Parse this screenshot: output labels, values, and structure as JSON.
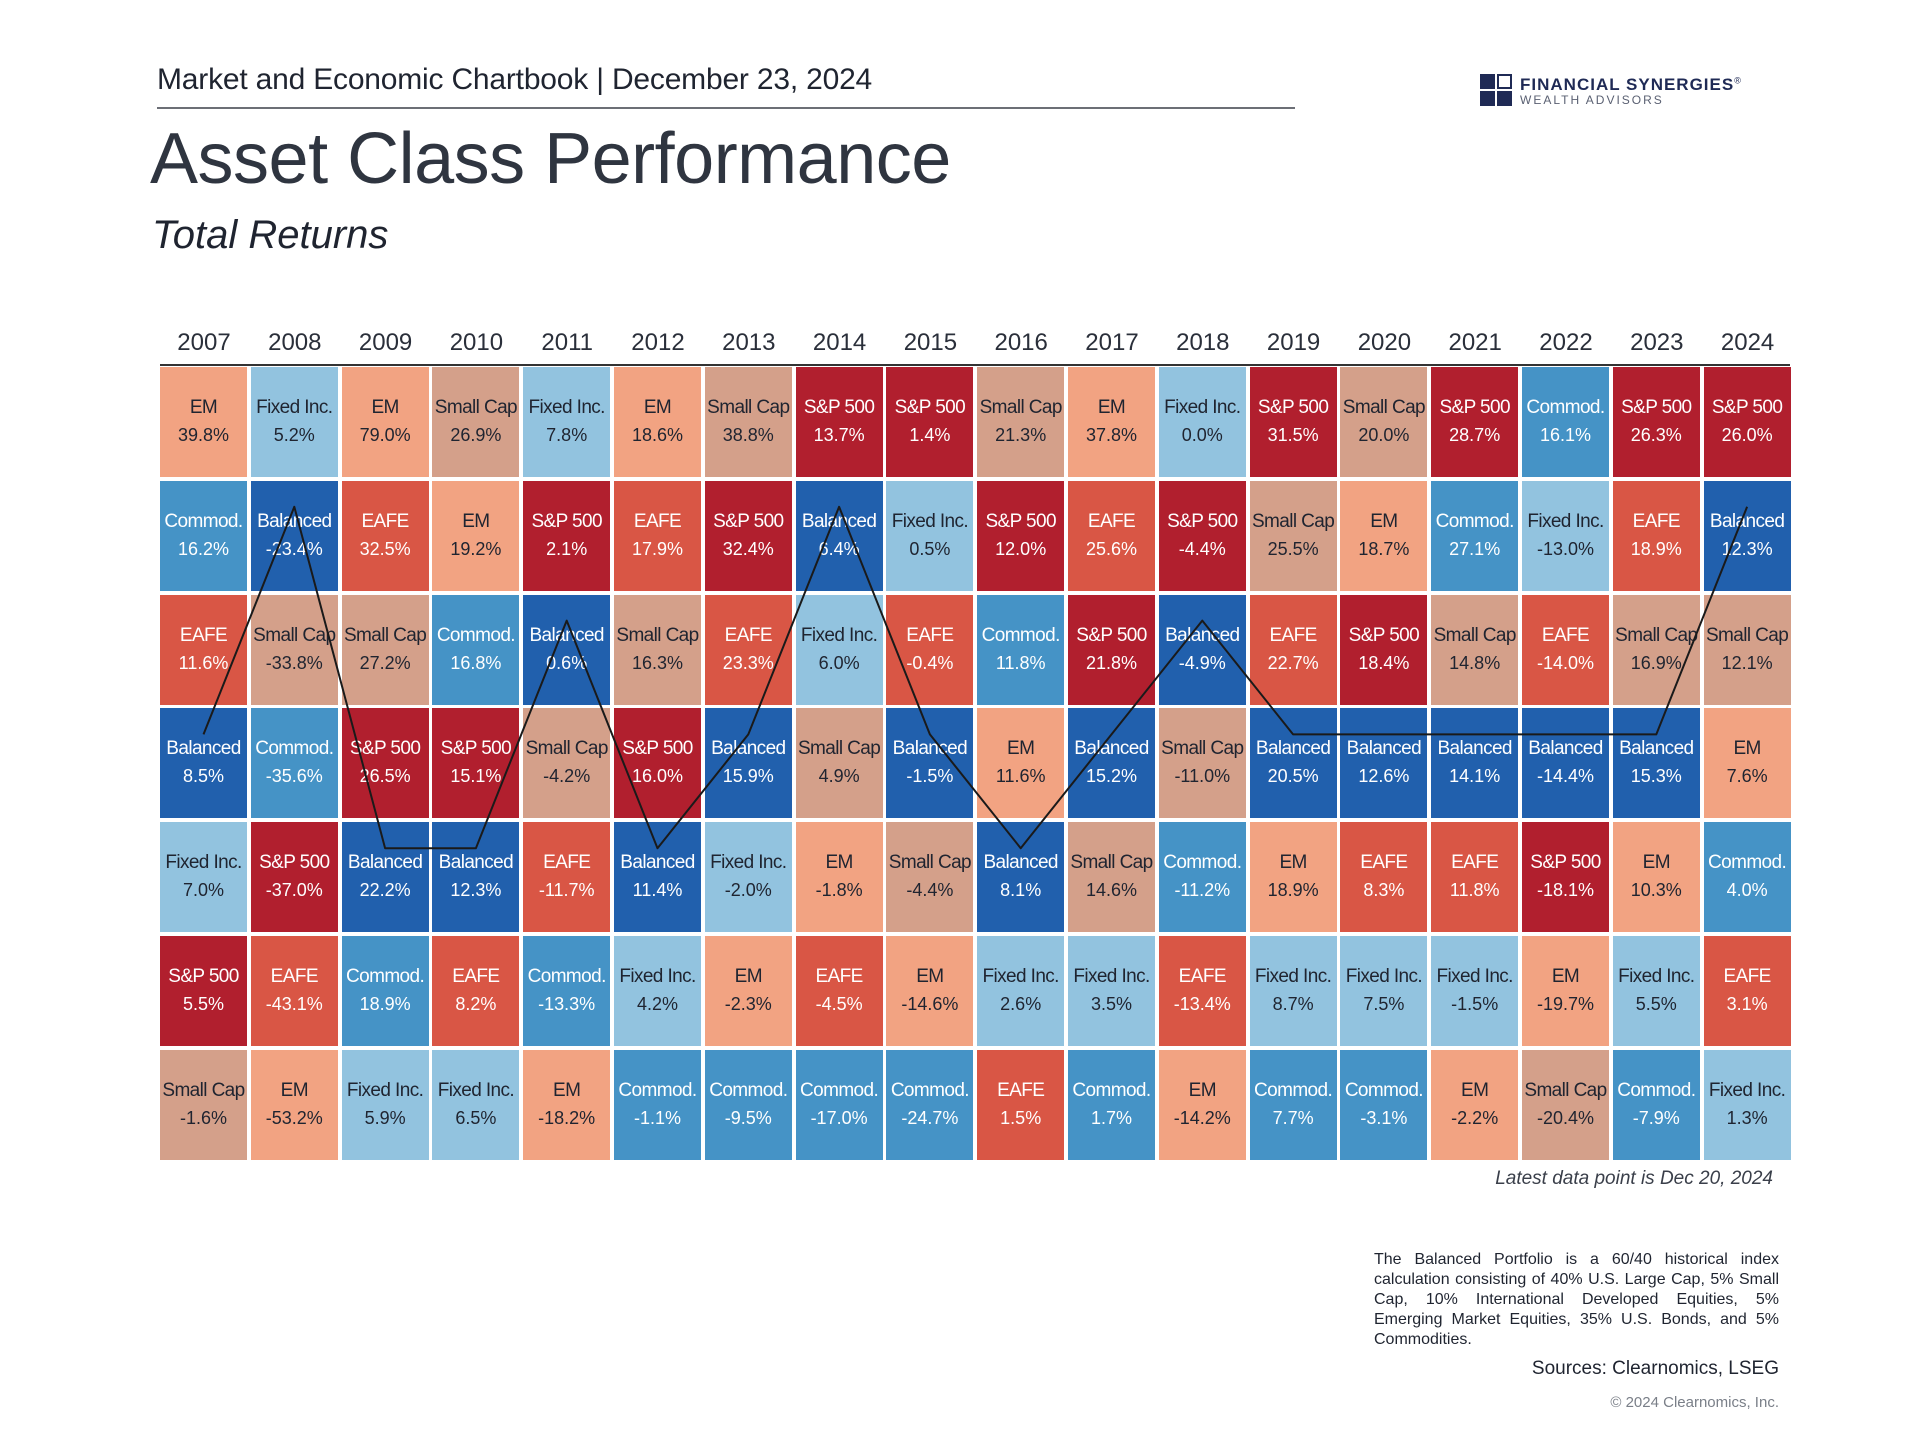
{
  "header": {
    "chartbook_line": "Market and Economic Chartbook | December 23, 2024",
    "logo_name": "FINANCIAL SYNERGIES",
    "logo_registered": "®",
    "logo_sub": "WEALTH ADVISORS"
  },
  "title": "Asset Class Performance",
  "subtitle": "Total Returns",
  "colors": {
    "S&P 500": "#b11f2e",
    "EAFE": "#d95645",
    "EM": "#f2a382",
    "Small Cap": "#d4a08a",
    "Fixed Inc.": "#92c3df",
    "Commod.": "#4593c6",
    "Balanced": "#2160ad",
    "balanced_line": "#1a1a1a",
    "logo": "#1f2a55"
  },
  "chart_data": {
    "type": "table",
    "title": "Asset Class Performance",
    "subtitle": "Total Returns",
    "years": [
      "2007",
      "2008",
      "2009",
      "2010",
      "2011",
      "2012",
      "2013",
      "2014",
      "2015",
      "2016",
      "2017",
      "2018",
      "2019",
      "2020",
      "2021",
      "2022",
      "2023",
      "2024"
    ],
    "columns": [
      [
        {
          "label": "EM",
          "value": "39.8%"
        },
        {
          "label": "Commod.",
          "value": "16.2%"
        },
        {
          "label": "EAFE",
          "value": "11.6%"
        },
        {
          "label": "Balanced",
          "value": "8.5%"
        },
        {
          "label": "Fixed Inc.",
          "value": "7.0%"
        },
        {
          "label": "S&P 500",
          "value": "5.5%"
        },
        {
          "label": "Small Cap",
          "value": "-1.6%"
        }
      ],
      [
        {
          "label": "Fixed Inc.",
          "value": "5.2%"
        },
        {
          "label": "Balanced",
          "value": "-23.4%"
        },
        {
          "label": "Small Cap",
          "value": "-33.8%"
        },
        {
          "label": "Commod.",
          "value": "-35.6%"
        },
        {
          "label": "S&P 500",
          "value": "-37.0%"
        },
        {
          "label": "EAFE",
          "value": "-43.1%"
        },
        {
          "label": "EM",
          "value": "-53.2%"
        }
      ],
      [
        {
          "label": "EM",
          "value": "79.0%"
        },
        {
          "label": "EAFE",
          "value": "32.5%"
        },
        {
          "label": "Small Cap",
          "value": "27.2%"
        },
        {
          "label": "S&P 500",
          "value": "26.5%"
        },
        {
          "label": "Balanced",
          "value": "22.2%"
        },
        {
          "label": "Commod.",
          "value": "18.9%"
        },
        {
          "label": "Fixed Inc.",
          "value": "5.9%"
        }
      ],
      [
        {
          "label": "Small Cap",
          "value": "26.9%"
        },
        {
          "label": "EM",
          "value": "19.2%"
        },
        {
          "label": "Commod.",
          "value": "16.8%"
        },
        {
          "label": "S&P 500",
          "value": "15.1%"
        },
        {
          "label": "Balanced",
          "value": "12.3%"
        },
        {
          "label": "EAFE",
          "value": "8.2%"
        },
        {
          "label": "Fixed Inc.",
          "value": "6.5%"
        }
      ],
      [
        {
          "label": "Fixed Inc.",
          "value": "7.8%"
        },
        {
          "label": "S&P 500",
          "value": "2.1%"
        },
        {
          "label": "Balanced",
          "value": "0.6%"
        },
        {
          "label": "Small Cap",
          "value": "-4.2%"
        },
        {
          "label": "EAFE",
          "value": "-11.7%"
        },
        {
          "label": "Commod.",
          "value": "-13.3%"
        },
        {
          "label": "EM",
          "value": "-18.2%"
        }
      ],
      [
        {
          "label": "EM",
          "value": "18.6%"
        },
        {
          "label": "EAFE",
          "value": "17.9%"
        },
        {
          "label": "Small Cap",
          "value": "16.3%"
        },
        {
          "label": "S&P 500",
          "value": "16.0%"
        },
        {
          "label": "Balanced",
          "value": "11.4%"
        },
        {
          "label": "Fixed Inc.",
          "value": "4.2%"
        },
        {
          "label": "Commod.",
          "value": "-1.1%"
        }
      ],
      [
        {
          "label": "Small Cap",
          "value": "38.8%"
        },
        {
          "label": "S&P 500",
          "value": "32.4%"
        },
        {
          "label": "EAFE",
          "value": "23.3%"
        },
        {
          "label": "Balanced",
          "value": "15.9%"
        },
        {
          "label": "Fixed Inc.",
          "value": "-2.0%"
        },
        {
          "label": "EM",
          "value": "-2.3%"
        },
        {
          "label": "Commod.",
          "value": "-9.5%"
        }
      ],
      [
        {
          "label": "S&P 500",
          "value": "13.7%"
        },
        {
          "label": "Balanced",
          "value": "6.4%"
        },
        {
          "label": "Fixed Inc.",
          "value": "6.0%"
        },
        {
          "label": "Small Cap",
          "value": "4.9%"
        },
        {
          "label": "EM",
          "value": "-1.8%"
        },
        {
          "label": "EAFE",
          "value": "-4.5%"
        },
        {
          "label": "Commod.",
          "value": "-17.0%"
        }
      ],
      [
        {
          "label": "S&P 500",
          "value": "1.4%"
        },
        {
          "label": "Fixed Inc.",
          "value": "0.5%"
        },
        {
          "label": "EAFE",
          "value": "-0.4%"
        },
        {
          "label": "Balanced",
          "value": "-1.5%"
        },
        {
          "label": "Small Cap",
          "value": "-4.4%"
        },
        {
          "label": "EM",
          "value": "-14.6%"
        },
        {
          "label": "Commod.",
          "value": "-24.7%"
        }
      ],
      [
        {
          "label": "Small Cap",
          "value": "21.3%"
        },
        {
          "label": "S&P 500",
          "value": "12.0%"
        },
        {
          "label": "Commod.",
          "value": "11.8%"
        },
        {
          "label": "EM",
          "value": "11.6%"
        },
        {
          "label": "Balanced",
          "value": "8.1%"
        },
        {
          "label": "Fixed Inc.",
          "value": "2.6%"
        },
        {
          "label": "EAFE",
          "value": "1.5%"
        }
      ],
      [
        {
          "label": "EM",
          "value": "37.8%"
        },
        {
          "label": "EAFE",
          "value": "25.6%"
        },
        {
          "label": "S&P 500",
          "value": "21.8%"
        },
        {
          "label": "Balanced",
          "value": "15.2%"
        },
        {
          "label": "Small Cap",
          "value": "14.6%"
        },
        {
          "label": "Fixed Inc.",
          "value": "3.5%"
        },
        {
          "label": "Commod.",
          "value": "1.7%"
        }
      ],
      [
        {
          "label": "Fixed Inc.",
          "value": "0.0%"
        },
        {
          "label": "S&P 500",
          "value": "-4.4%"
        },
        {
          "label": "Balanced",
          "value": "-4.9%"
        },
        {
          "label": "Small Cap",
          "value": "-11.0%"
        },
        {
          "label": "Commod.",
          "value": "-11.2%"
        },
        {
          "label": "EAFE",
          "value": "-13.4%"
        },
        {
          "label": "EM",
          "value": "-14.2%"
        }
      ],
      [
        {
          "label": "S&P 500",
          "value": "31.5%"
        },
        {
          "label": "Small Cap",
          "value": "25.5%"
        },
        {
          "label": "EAFE",
          "value": "22.7%"
        },
        {
          "label": "Balanced",
          "value": "20.5%"
        },
        {
          "label": "EM",
          "value": "18.9%"
        },
        {
          "label": "Fixed Inc.",
          "value": "8.7%"
        },
        {
          "label": "Commod.",
          "value": "7.7%"
        }
      ],
      [
        {
          "label": "Small Cap",
          "value": "20.0%"
        },
        {
          "label": "EM",
          "value": "18.7%"
        },
        {
          "label": "S&P 500",
          "value": "18.4%"
        },
        {
          "label": "Balanced",
          "value": "12.6%"
        },
        {
          "label": "EAFE",
          "value": "8.3%"
        },
        {
          "label": "Fixed Inc.",
          "value": "7.5%"
        },
        {
          "label": "Commod.",
          "value": "-3.1%"
        }
      ],
      [
        {
          "label": "S&P 500",
          "value": "28.7%"
        },
        {
          "label": "Commod.",
          "value": "27.1%"
        },
        {
          "label": "Small Cap",
          "value": "14.8%"
        },
        {
          "label": "Balanced",
          "value": "14.1%"
        },
        {
          "label": "EAFE",
          "value": "11.8%"
        },
        {
          "label": "Fixed Inc.",
          "value": "-1.5%"
        },
        {
          "label": "EM",
          "value": "-2.2%"
        }
      ],
      [
        {
          "label": "Commod.",
          "value": "16.1%"
        },
        {
          "label": "Fixed Inc.",
          "value": "-13.0%"
        },
        {
          "label": "EAFE",
          "value": "-14.0%"
        },
        {
          "label": "Balanced",
          "value": "-14.4%"
        },
        {
          "label": "S&P 500",
          "value": "-18.1%"
        },
        {
          "label": "EM",
          "value": "-19.7%"
        },
        {
          "label": "Small Cap",
          "value": "-20.4%"
        }
      ],
      [
        {
          "label": "S&P 500",
          "value": "26.3%"
        },
        {
          "label": "EAFE",
          "value": "18.9%"
        },
        {
          "label": "Small Cap",
          "value": "16.9%"
        },
        {
          "label": "Balanced",
          "value": "15.3%"
        },
        {
          "label": "EM",
          "value": "10.3%"
        },
        {
          "label": "Fixed Inc.",
          "value": "5.5%"
        },
        {
          "label": "Commod.",
          "value": "-7.9%"
        }
      ],
      [
        {
          "label": "S&P 500",
          "value": "26.0%"
        },
        {
          "label": "Balanced",
          "value": "12.3%"
        },
        {
          "label": "Small Cap",
          "value": "12.1%"
        },
        {
          "label": "EM",
          "value": "7.6%"
        },
        {
          "label": "Commod.",
          "value": "4.0%"
        },
        {
          "label": "EAFE",
          "value": "3.1%"
        },
        {
          "label": "Fixed Inc.",
          "value": "1.3%"
        }
      ]
    ]
  },
  "notes": {
    "latest": "Latest data point is Dec 20, 2024",
    "footnote": "The Balanced Portfolio is a 60/40 historical index calculation consisting of 40% U.S. Large Cap, 5% Small Cap, 10% International Developed Equities, 5% Emerging Market Equities, 35% U.S. Bonds, and 5% Commodities.",
    "sources": "Sources: Clearnomics, LSEG",
    "copyright": "© 2024 Clearnomics, Inc."
  }
}
